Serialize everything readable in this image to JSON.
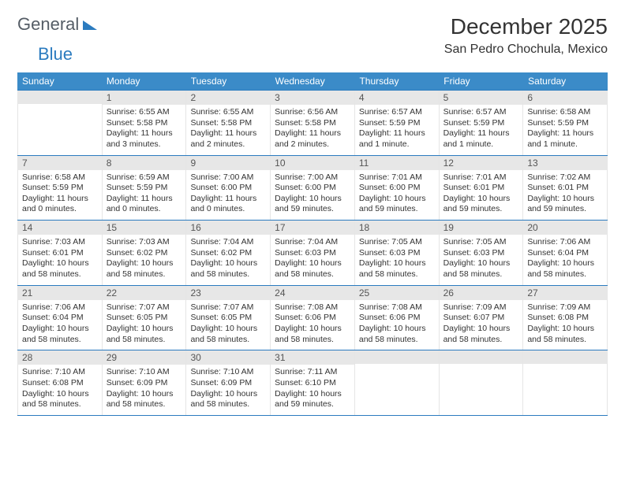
{
  "logo": {
    "part1": "General",
    "part2": "Blue"
  },
  "header": {
    "month_title": "December 2025",
    "location": "San Pedro Chochula, Mexico"
  },
  "colors": {
    "header_bg": "#3b8bc8",
    "week_border": "#2b7bbf",
    "daynum_bg": "#e7e7e7"
  },
  "weekdays": [
    "Sunday",
    "Monday",
    "Tuesday",
    "Wednesday",
    "Thursday",
    "Friday",
    "Saturday"
  ],
  "weeks": [
    [
      {
        "empty": true
      },
      {
        "n": "1",
        "sr": "Sunrise: 6:55 AM",
        "ss": "Sunset: 5:58 PM",
        "dl": "Daylight: 11 hours and 3 minutes."
      },
      {
        "n": "2",
        "sr": "Sunrise: 6:55 AM",
        "ss": "Sunset: 5:58 PM",
        "dl": "Daylight: 11 hours and 2 minutes."
      },
      {
        "n": "3",
        "sr": "Sunrise: 6:56 AM",
        "ss": "Sunset: 5:58 PM",
        "dl": "Daylight: 11 hours and 2 minutes."
      },
      {
        "n": "4",
        "sr": "Sunrise: 6:57 AM",
        "ss": "Sunset: 5:59 PM",
        "dl": "Daylight: 11 hours and 1 minute."
      },
      {
        "n": "5",
        "sr": "Sunrise: 6:57 AM",
        "ss": "Sunset: 5:59 PM",
        "dl": "Daylight: 11 hours and 1 minute."
      },
      {
        "n": "6",
        "sr": "Sunrise: 6:58 AM",
        "ss": "Sunset: 5:59 PM",
        "dl": "Daylight: 11 hours and 1 minute."
      }
    ],
    [
      {
        "n": "7",
        "sr": "Sunrise: 6:58 AM",
        "ss": "Sunset: 5:59 PM",
        "dl": "Daylight: 11 hours and 0 minutes."
      },
      {
        "n": "8",
        "sr": "Sunrise: 6:59 AM",
        "ss": "Sunset: 5:59 PM",
        "dl": "Daylight: 11 hours and 0 minutes."
      },
      {
        "n": "9",
        "sr": "Sunrise: 7:00 AM",
        "ss": "Sunset: 6:00 PM",
        "dl": "Daylight: 11 hours and 0 minutes."
      },
      {
        "n": "10",
        "sr": "Sunrise: 7:00 AM",
        "ss": "Sunset: 6:00 PM",
        "dl": "Daylight: 10 hours and 59 minutes."
      },
      {
        "n": "11",
        "sr": "Sunrise: 7:01 AM",
        "ss": "Sunset: 6:00 PM",
        "dl": "Daylight: 10 hours and 59 minutes."
      },
      {
        "n": "12",
        "sr": "Sunrise: 7:01 AM",
        "ss": "Sunset: 6:01 PM",
        "dl": "Daylight: 10 hours and 59 minutes."
      },
      {
        "n": "13",
        "sr": "Sunrise: 7:02 AM",
        "ss": "Sunset: 6:01 PM",
        "dl": "Daylight: 10 hours and 59 minutes."
      }
    ],
    [
      {
        "n": "14",
        "sr": "Sunrise: 7:03 AM",
        "ss": "Sunset: 6:01 PM",
        "dl": "Daylight: 10 hours and 58 minutes."
      },
      {
        "n": "15",
        "sr": "Sunrise: 7:03 AM",
        "ss": "Sunset: 6:02 PM",
        "dl": "Daylight: 10 hours and 58 minutes."
      },
      {
        "n": "16",
        "sr": "Sunrise: 7:04 AM",
        "ss": "Sunset: 6:02 PM",
        "dl": "Daylight: 10 hours and 58 minutes."
      },
      {
        "n": "17",
        "sr": "Sunrise: 7:04 AM",
        "ss": "Sunset: 6:03 PM",
        "dl": "Daylight: 10 hours and 58 minutes."
      },
      {
        "n": "18",
        "sr": "Sunrise: 7:05 AM",
        "ss": "Sunset: 6:03 PM",
        "dl": "Daylight: 10 hours and 58 minutes."
      },
      {
        "n": "19",
        "sr": "Sunrise: 7:05 AM",
        "ss": "Sunset: 6:03 PM",
        "dl": "Daylight: 10 hours and 58 minutes."
      },
      {
        "n": "20",
        "sr": "Sunrise: 7:06 AM",
        "ss": "Sunset: 6:04 PM",
        "dl": "Daylight: 10 hours and 58 minutes."
      }
    ],
    [
      {
        "n": "21",
        "sr": "Sunrise: 7:06 AM",
        "ss": "Sunset: 6:04 PM",
        "dl": "Daylight: 10 hours and 58 minutes."
      },
      {
        "n": "22",
        "sr": "Sunrise: 7:07 AM",
        "ss": "Sunset: 6:05 PM",
        "dl": "Daylight: 10 hours and 58 minutes."
      },
      {
        "n": "23",
        "sr": "Sunrise: 7:07 AM",
        "ss": "Sunset: 6:05 PM",
        "dl": "Daylight: 10 hours and 58 minutes."
      },
      {
        "n": "24",
        "sr": "Sunrise: 7:08 AM",
        "ss": "Sunset: 6:06 PM",
        "dl": "Daylight: 10 hours and 58 minutes."
      },
      {
        "n": "25",
        "sr": "Sunrise: 7:08 AM",
        "ss": "Sunset: 6:06 PM",
        "dl": "Daylight: 10 hours and 58 minutes."
      },
      {
        "n": "26",
        "sr": "Sunrise: 7:09 AM",
        "ss": "Sunset: 6:07 PM",
        "dl": "Daylight: 10 hours and 58 minutes."
      },
      {
        "n": "27",
        "sr": "Sunrise: 7:09 AM",
        "ss": "Sunset: 6:08 PM",
        "dl": "Daylight: 10 hours and 58 minutes."
      }
    ],
    [
      {
        "n": "28",
        "sr": "Sunrise: 7:10 AM",
        "ss": "Sunset: 6:08 PM",
        "dl": "Daylight: 10 hours and 58 minutes."
      },
      {
        "n": "29",
        "sr": "Sunrise: 7:10 AM",
        "ss": "Sunset: 6:09 PM",
        "dl": "Daylight: 10 hours and 58 minutes."
      },
      {
        "n": "30",
        "sr": "Sunrise: 7:10 AM",
        "ss": "Sunset: 6:09 PM",
        "dl": "Daylight: 10 hours and 58 minutes."
      },
      {
        "n": "31",
        "sr": "Sunrise: 7:11 AM",
        "ss": "Sunset: 6:10 PM",
        "dl": "Daylight: 10 hours and 59 minutes."
      },
      {
        "empty": true
      },
      {
        "empty": true
      },
      {
        "empty": true
      }
    ]
  ]
}
